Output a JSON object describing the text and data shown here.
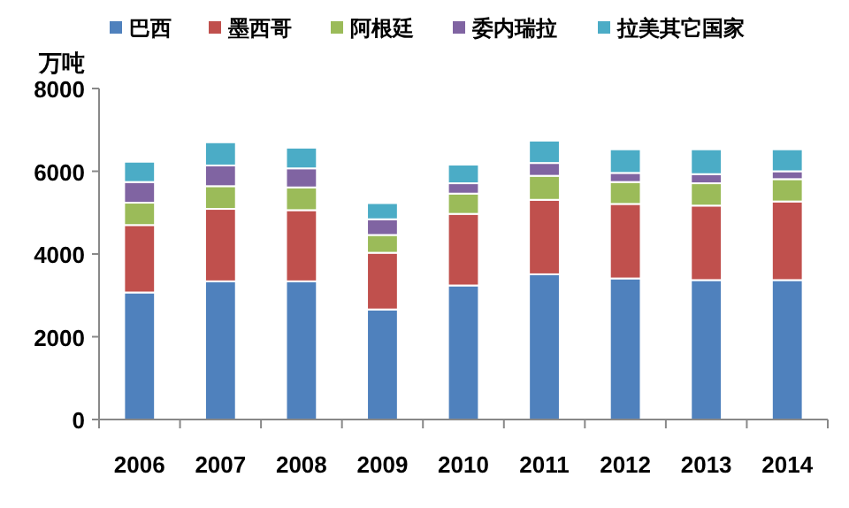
{
  "chart_data": {
    "type": "bar",
    "stacked": true,
    "ylabel": "万吨",
    "categories": [
      "2006",
      "2007",
      "2008",
      "2009",
      "2010",
      "2011",
      "2012",
      "2013",
      "2014"
    ],
    "series": [
      {
        "name": "巴西",
        "color": "#4f81bd",
        "values": [
          3070,
          3340,
          3340,
          2660,
          3240,
          3510,
          3410,
          3370,
          3370
        ]
      },
      {
        "name": "墨西哥",
        "color": "#c0504d",
        "values": [
          1630,
          1750,
          1720,
          1370,
          1730,
          1800,
          1800,
          1800,
          1900
        ]
      },
      {
        "name": "阿根廷",
        "color": "#9bbb59",
        "values": [
          540,
          550,
          550,
          430,
          490,
          580,
          530,
          540,
          540
        ]
      },
      {
        "name": "委内瑞拉",
        "color": "#8064a2",
        "values": [
          500,
          500,
          460,
          380,
          250,
          310,
          220,
          220,
          190
        ]
      },
      {
        "name": "拉美其它国家",
        "color": "#4bacc6",
        "values": [
          490,
          560,
          500,
          390,
          450,
          540,
          570,
          600,
          530
        ]
      }
    ],
    "ylim": [
      0,
      8000
    ],
    "yticks": [
      0,
      2000,
      4000,
      6000,
      8000
    ],
    "legend": "top"
  }
}
